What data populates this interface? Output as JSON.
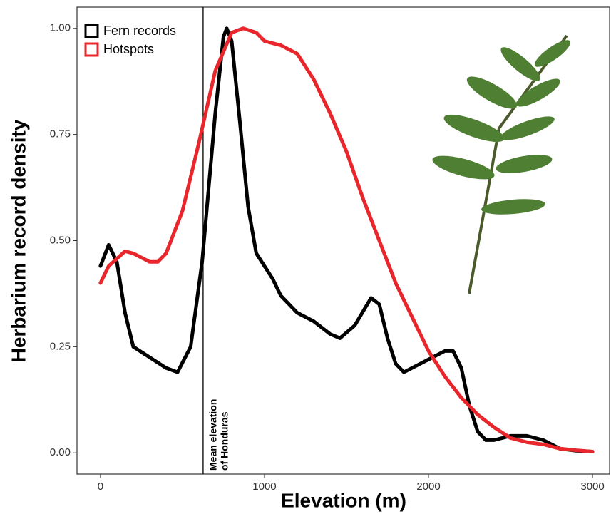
{
  "chart_data": {
    "type": "line",
    "x_label": "Elevation (m)",
    "y_label": "Herbarium record density",
    "xlim": [
      -143,
      3104
    ],
    "ylim": [
      -0.05,
      1.05
    ],
    "xticks": [
      0,
      1000,
      2000,
      3000
    ],
    "yticks": [
      {
        "value": 0,
        "label": "0.00"
      },
      {
        "value": 0.25,
        "label": "0.25"
      },
      {
        "value": 0.5,
        "label": "0.50"
      },
      {
        "value": 0.75,
        "label": "0.75"
      },
      {
        "value": 1,
        "label": "1.00"
      }
    ],
    "grid": false,
    "legend": "top-left",
    "vline": {
      "x": 626,
      "color": "#000000",
      "label": [
        "Mean elevation",
        "of Honduras"
      ]
    },
    "series": [
      {
        "name": "Fern records",
        "color": "#000000",
        "x": [
          0,
          50,
          100,
          150,
          200,
          300,
          400,
          470,
          550,
          620,
          700,
          750,
          770,
          800,
          850,
          900,
          950,
          1000,
          1050,
          1100,
          1200,
          1300,
          1400,
          1460,
          1550,
          1650,
          1700,
          1750,
          1800,
          1850,
          1950,
          2000,
          2100,
          2150,
          2200,
          2250,
          2300,
          2350,
          2400,
          2500,
          2600,
          2700,
          2800,
          2900,
          3000
        ],
        "values": [
          0.44,
          0.49,
          0.45,
          0.33,
          0.25,
          0.225,
          0.2,
          0.19,
          0.25,
          0.45,
          0.8,
          0.98,
          1.0,
          0.97,
          0.78,
          0.58,
          0.47,
          0.44,
          0.41,
          0.37,
          0.33,
          0.31,
          0.28,
          0.27,
          0.3,
          0.365,
          0.35,
          0.27,
          0.21,
          0.19,
          0.21,
          0.22,
          0.24,
          0.24,
          0.2,
          0.11,
          0.05,
          0.03,
          0.03,
          0.04,
          0.04,
          0.03,
          0.01,
          0.005,
          0.003
        ]
      },
      {
        "name": "Hotspots",
        "color": "#e8262b",
        "x": [
          0,
          50,
          150,
          200,
          300,
          350,
          400,
          500,
          600,
          700,
          800,
          870,
          950,
          1000,
          1100,
          1200,
          1300,
          1400,
          1500,
          1600,
          1700,
          1800,
          1900,
          2000,
          2100,
          2200,
          2300,
          2400,
          2500,
          2600,
          2700,
          2800,
          2900,
          3000
        ],
        "values": [
          0.4,
          0.44,
          0.475,
          0.47,
          0.45,
          0.45,
          0.47,
          0.57,
          0.73,
          0.9,
          0.99,
          1.0,
          0.99,
          0.97,
          0.96,
          0.94,
          0.88,
          0.8,
          0.71,
          0.6,
          0.5,
          0.4,
          0.32,
          0.24,
          0.18,
          0.13,
          0.09,
          0.06,
          0.035,
          0.025,
          0.02,
          0.01,
          0.006,
          0.003
        ]
      }
    ]
  }
}
